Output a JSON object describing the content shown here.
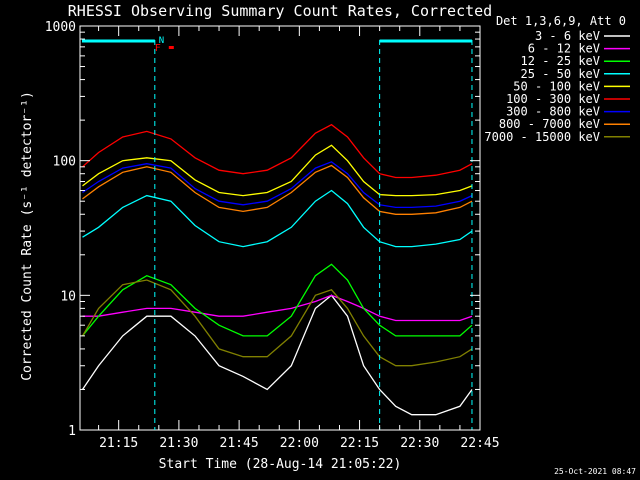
{
  "colors": {
    "background": "#000000",
    "foreground": "#ffffff",
    "cyan": "#00ffff",
    "red": "#ff0000"
  },
  "chart_data": {
    "type": "line",
    "title": "RHESSI Observing Summary Count Rates, Corrected",
    "xlabel": "Start Time (28-Aug-14 21:05:22)",
    "ylabel": "Corrected Count Rate (s⁻¹ detector⁻¹)",
    "y_scale": "log",
    "ylim": [
      1,
      1000
    ],
    "xlim": [
      "21:05:22",
      "22:45"
    ],
    "grid": false,
    "y_ticks": [
      {
        "value": 1,
        "label": "1"
      },
      {
        "value": 10,
        "label": "10"
      },
      {
        "value": 100,
        "label": "100"
      },
      {
        "value": 1000,
        "label": "1000"
      }
    ],
    "x_ticks": [
      "21:15",
      "21:30",
      "21:45",
      "22:00",
      "22:15",
      "22:30",
      "22:45"
    ],
    "legend_header": "Det 1,3,6,9, Att 0",
    "legend_position": "right",
    "footer_date": "25-Oct-2021 08:47",
    "series": [
      {
        "name": "3 - 6 keV",
        "color": "#ffffff",
        "x": [
          "21:06",
          "21:10",
          "21:16",
          "21:22",
          "21:28",
          "21:34",
          "21:40",
          "21:46",
          "21:52",
          "21:58",
          "22:04",
          "22:08",
          "22:12",
          "22:16",
          "22:20",
          "22:24",
          "22:28",
          "22:34",
          "22:40",
          "22:43"
        ],
        "y": [
          2,
          3,
          5,
          7,
          7,
          5,
          3,
          2.5,
          2,
          3,
          8,
          10,
          7,
          3,
          2,
          1.5,
          1.3,
          1.3,
          1.5,
          2
        ]
      },
      {
        "name": "6 - 12 keV",
        "color": "#ff00ff",
        "x": [
          "21:06",
          "21:10",
          "21:16",
          "21:22",
          "21:28",
          "21:34",
          "21:40",
          "21:46",
          "21:52",
          "21:58",
          "22:04",
          "22:08",
          "22:12",
          "22:16",
          "22:20",
          "22:24",
          "22:28",
          "22:34",
          "22:40",
          "22:43"
        ],
        "y": [
          7,
          7,
          7.5,
          8,
          8,
          7.5,
          7,
          7,
          7.5,
          8,
          9,
          10,
          9,
          8,
          7,
          6.5,
          6.5,
          6.5,
          6.5,
          7
        ]
      },
      {
        "name": "12 - 25 keV",
        "color": "#00ff00",
        "x": [
          "21:06",
          "21:10",
          "21:16",
          "21:22",
          "21:28",
          "21:34",
          "21:40",
          "21:46",
          "21:52",
          "21:58",
          "22:04",
          "22:08",
          "22:12",
          "22:16",
          "22:20",
          "22:24",
          "22:28",
          "22:34",
          "22:40",
          "22:43"
        ],
        "y": [
          5,
          7,
          11,
          14,
          12,
          8,
          6,
          5,
          5,
          7,
          14,
          17,
          13,
          8,
          6,
          5,
          5,
          5,
          5,
          6
        ]
      },
      {
        "name": "25 - 50 keV",
        "color": "#00ffff",
        "x": [
          "21:06",
          "21:10",
          "21:16",
          "21:22",
          "21:28",
          "21:34",
          "21:40",
          "21:46",
          "21:52",
          "21:58",
          "22:04",
          "22:08",
          "22:12",
          "22:16",
          "22:20",
          "22:24",
          "22:28",
          "22:34",
          "22:40",
          "22:43"
        ],
        "y": [
          27,
          32,
          45,
          55,
          50,
          33,
          25,
          23,
          25,
          32,
          50,
          60,
          48,
          32,
          25,
          23,
          23,
          24,
          26,
          30
        ]
      },
      {
        "name": "50 - 100 keV",
        "color": "#ffff00",
        "x": [
          "21:06",
          "21:10",
          "21:16",
          "21:22",
          "21:28",
          "21:34",
          "21:40",
          "21:46",
          "21:52",
          "21:58",
          "22:04",
          "22:08",
          "22:12",
          "22:16",
          "22:20",
          "22:24",
          "22:28",
          "22:34",
          "22:40",
          "22:43"
        ],
        "y": [
          65,
          80,
          100,
          105,
          100,
          72,
          58,
          55,
          58,
          70,
          110,
          130,
          100,
          70,
          56,
          55,
          55,
          56,
          60,
          65
        ]
      },
      {
        "name": "100 - 300 keV",
        "color": "#ff0000",
        "x": [
          "21:06",
          "21:10",
          "21:16",
          "21:22",
          "21:28",
          "21:34",
          "21:40",
          "21:46",
          "21:52",
          "21:58",
          "22:04",
          "22:08",
          "22:12",
          "22:16",
          "22:20",
          "22:24",
          "22:28",
          "22:34",
          "22:40",
          "22:43"
        ],
        "y": [
          90,
          115,
          150,
          165,
          145,
          105,
          85,
          80,
          85,
          105,
          160,
          185,
          150,
          105,
          80,
          75,
          75,
          78,
          85,
          95
        ]
      },
      {
        "name": "300 - 800 keV",
        "color": "#0000ff",
        "x": [
          "21:06",
          "21:10",
          "21:16",
          "21:22",
          "21:28",
          "21:34",
          "21:40",
          "21:46",
          "21:52",
          "21:58",
          "22:04",
          "22:08",
          "22:12",
          "22:16",
          "22:20",
          "22:24",
          "22:28",
          "22:34",
          "22:40",
          "22:43"
        ],
        "y": [
          58,
          70,
          88,
          95,
          88,
          62,
          50,
          47,
          50,
          62,
          88,
          98,
          80,
          58,
          47,
          45,
          45,
          46,
          50,
          55
        ]
      },
      {
        "name": "800 - 7000 keV",
        "color": "#ff8000",
        "x": [
          "21:06",
          "21:10",
          "21:16",
          "21:22",
          "21:28",
          "21:34",
          "21:40",
          "21:46",
          "21:52",
          "21:58",
          "22:04",
          "22:08",
          "22:12",
          "22:16",
          "22:20",
          "22:24",
          "22:28",
          "22:34",
          "22:40",
          "22:43"
        ],
        "y": [
          52,
          64,
          82,
          90,
          82,
          58,
          45,
          42,
          45,
          58,
          82,
          92,
          75,
          53,
          42,
          40,
          40,
          41,
          45,
          50
        ]
      },
      {
        "name": "7000 - 15000 keV",
        "color": "#808000",
        "x": [
          "21:06",
          "21:10",
          "21:16",
          "21:22",
          "21:28",
          "21:34",
          "21:40",
          "21:46",
          "21:52",
          "21:58",
          "22:04",
          "22:08",
          "22:12",
          "22:16",
          "22:20",
          "22:24",
          "22:28",
          "22:34",
          "22:40",
          "22:43"
        ],
        "y": [
          5,
          8,
          12,
          13,
          11,
          7,
          4,
          3.5,
          3.5,
          5,
          10,
          11,
          8,
          5,
          3.5,
          3,
          3,
          3.2,
          3.5,
          4
        ]
      }
    ],
    "annotations": {
      "night_label": "N",
      "flare_label": "F",
      "night_markers": [
        "21:24",
        "22:20",
        "22:43"
      ]
    }
  }
}
